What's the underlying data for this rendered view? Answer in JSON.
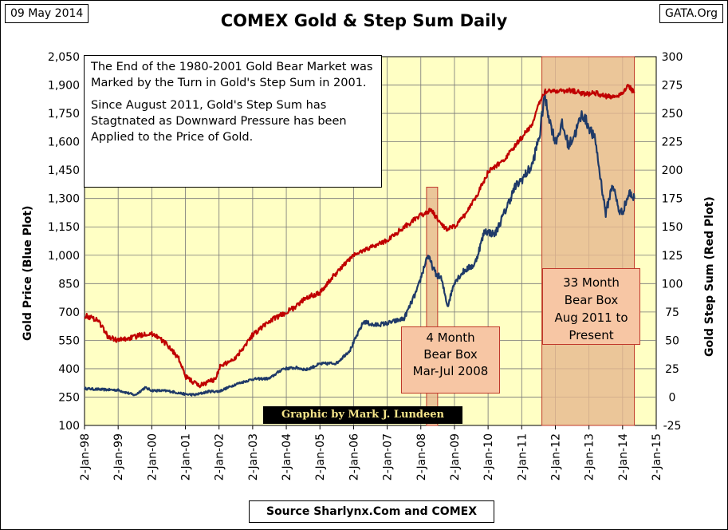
{
  "header": {
    "date": "09 May 2014",
    "source_tag": "GATA.Org"
  },
  "chart_data": {
    "type": "line",
    "title": "COMEX Gold & Step Sum Daily",
    "ylabel_left": "Gold Price    (Blue Plot)",
    "ylabel_right": "Gold Step Sum    (Red Plot)",
    "left_ticks": [
      "2,050",
      "1,900",
      "1,750",
      "1,600",
      "1,450",
      "1,300",
      "1,150",
      "1,000",
      "850",
      "700",
      "550",
      "400",
      "250",
      "100"
    ],
    "left_ylim": [
      100,
      2050
    ],
    "right_ticks": [
      "300",
      "275",
      "250",
      "225",
      "200",
      "175",
      "150",
      "125",
      "100",
      "75",
      "50",
      "25",
      "0",
      "-25"
    ],
    "right_ylim": [
      -25,
      300
    ],
    "x_ticks": [
      "2-Jan-98",
      "2-Jan-99",
      "2-Jan-00",
      "2-Jan-01",
      "2-Jan-02",
      "2-Jan-03",
      "2-Jan-04",
      "2-Jan-05",
      "2-Jan-06",
      "2-Jan-07",
      "2-Jan-08",
      "2-Jan-09",
      "2-Jan-10",
      "2-Jan-11",
      "2-Jan-12",
      "2-Jan-13",
      "2-Jan-14",
      "2-Jan-15"
    ],
    "xlim": [
      1998.0,
      2015.0
    ],
    "series": [
      {
        "name": "Gold Price",
        "axis": "left",
        "color": "#1f3a68",
        "points": [
          [
            1998.0,
            295
          ],
          [
            1998.5,
            290
          ],
          [
            1999.0,
            287
          ],
          [
            1999.5,
            260
          ],
          [
            1999.8,
            300
          ],
          [
            2000.0,
            285
          ],
          [
            2000.5,
            282
          ],
          [
            2001.0,
            265
          ],
          [
            2001.3,
            262
          ],
          [
            2001.7,
            280
          ],
          [
            2002.0,
            280
          ],
          [
            2002.5,
            318
          ],
          [
            2003.0,
            345
          ],
          [
            2003.5,
            348
          ],
          [
            2003.9,
            400
          ],
          [
            2004.3,
            405
          ],
          [
            2004.6,
            395
          ],
          [
            2005.0,
            425
          ],
          [
            2005.5,
            430
          ],
          [
            2005.9,
            500
          ],
          [
            2006.3,
            650
          ],
          [
            2006.6,
            630
          ],
          [
            2007.0,
            640
          ],
          [
            2007.5,
            665
          ],
          [
            2007.9,
            820
          ],
          [
            2008.2,
            1000
          ],
          [
            2008.45,
            900
          ],
          [
            2008.6,
            880
          ],
          [
            2008.8,
            730
          ],
          [
            2009.0,
            860
          ],
          [
            2009.3,
            920
          ],
          [
            2009.6,
            950
          ],
          [
            2009.9,
            1130
          ],
          [
            2010.2,
            1110
          ],
          [
            2010.5,
            1230
          ],
          [
            2010.8,
            1360
          ],
          [
            2011.0,
            1400
          ],
          [
            2011.3,
            1470
          ],
          [
            2011.55,
            1650
          ],
          [
            2011.67,
            1850
          ],
          [
            2011.85,
            1700
          ],
          [
            2012.0,
            1600
          ],
          [
            2012.2,
            1690
          ],
          [
            2012.4,
            1580
          ],
          [
            2012.6,
            1650
          ],
          [
            2012.8,
            1750
          ],
          [
            2013.0,
            1680
          ],
          [
            2013.2,
            1600
          ],
          [
            2013.3,
            1460
          ],
          [
            2013.5,
            1220
          ],
          [
            2013.7,
            1380
          ],
          [
            2013.9,
            1230
          ],
          [
            2014.0,
            1230
          ],
          [
            2014.2,
            1330
          ],
          [
            2014.35,
            1300
          ]
        ]
      },
      {
        "name": "Gold Step Sum",
        "axis": "right",
        "color": "#c00000",
        "points": [
          [
            1998.0,
            72
          ],
          [
            1998.4,
            68
          ],
          [
            1998.7,
            53
          ],
          [
            1999.0,
            50
          ],
          [
            1999.5,
            53
          ],
          [
            1999.8,
            56
          ],
          [
            2000.1,
            55
          ],
          [
            2000.5,
            45
          ],
          [
            2000.8,
            34
          ],
          [
            2001.0,
            18
          ],
          [
            2001.4,
            10
          ],
          [
            2001.9,
            16
          ],
          [
            2002.0,
            26
          ],
          [
            2002.5,
            35
          ],
          [
            2003.0,
            55
          ],
          [
            2003.5,
            67
          ],
          [
            2003.9,
            73
          ],
          [
            2004.3,
            80
          ],
          [
            2004.6,
            88
          ],
          [
            2005.0,
            92
          ],
          [
            2005.5,
            110
          ],
          [
            2006.0,
            125
          ],
          [
            2006.5,
            132
          ],
          [
            2007.0,
            138
          ],
          [
            2007.5,
            150
          ],
          [
            2008.0,
            160
          ],
          [
            2008.3,
            165
          ],
          [
            2008.6,
            152
          ],
          [
            2008.8,
            148
          ],
          [
            2009.0,
            150
          ],
          [
            2009.3,
            160
          ],
          [
            2009.7,
            180
          ],
          [
            2010.0,
            198
          ],
          [
            2010.5,
            210
          ],
          [
            2010.9,
            225
          ],
          [
            2011.3,
            240
          ],
          [
            2011.6,
            265
          ],
          [
            2011.7,
            270
          ],
          [
            2012.0,
            270
          ],
          [
            2012.5,
            270
          ],
          [
            2012.9,
            267
          ],
          [
            2013.2,
            268
          ],
          [
            2013.5,
            265
          ],
          [
            2013.8,
            265
          ],
          [
            2014.0,
            268
          ],
          [
            2014.15,
            275
          ],
          [
            2014.35,
            268
          ]
        ]
      }
    ],
    "shaded_boxes": [
      {
        "label_lines": [
          "4 Month",
          "Bear Box",
          "Mar-Jul 2008"
        ],
        "x_start": 2008.17,
        "x_end": 2008.5,
        "top_value_left": 1360
      },
      {
        "label_lines": [
          "33 Month",
          "Bear Box",
          "Aug 2011 to",
          "Present"
        ],
        "x_start": 2011.6,
        "x_end": 2014.35,
        "top_value_left": 2050
      }
    ],
    "annotation": {
      "para1": "The End of the 1980-2001 Gold Bear Market was Marked by the Turn in Gold's Step Sum in 2001.",
      "para2": "Since August 2011, Gold's Step Sum has Stagtnated as Downward Pressure has been Applied to the Price of Gold."
    },
    "credit": "Graphic by Mark J. Lundeen",
    "footer": "Source Sharlynx.Com and COMEX"
  }
}
